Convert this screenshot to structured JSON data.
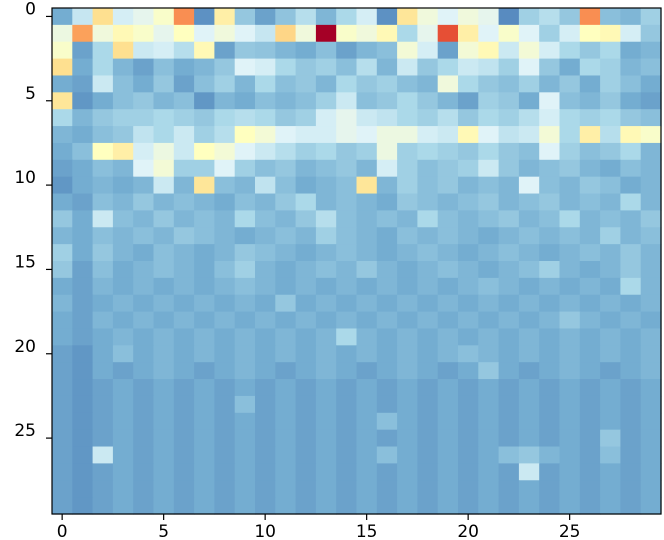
{
  "chart_data": {
    "type": "heatmap",
    "title": "",
    "xlabel": "",
    "ylabel": "",
    "n_rows": 30,
    "n_cols": 30,
    "xlim": [
      -0.5,
      29.5
    ],
    "ylim": [
      29.5,
      -0.5
    ],
    "y_axis_inverted": true,
    "colormap": "RdYlBu_r",
    "value_range": [
      0,
      1
    ],
    "colorbar": "none",
    "grid": false,
    "x_ticks": [
      0,
      5,
      10,
      15,
      20,
      25
    ],
    "x_tick_labels": [
      "0",
      "5",
      "10",
      "15",
      "20",
      "25"
    ],
    "y_ticks": [
      0,
      5,
      10,
      15,
      20,
      25
    ],
    "y_tick_labels": [
      "0",
      "5",
      "10",
      "15",
      "20",
      "25"
    ],
    "values": [
      [
        0.2,
        0.35,
        0.6,
        0.38,
        0.42,
        0.48,
        0.75,
        0.15,
        0.55,
        0.26,
        0.18,
        0.25,
        0.32,
        0.22,
        0.3,
        0.38,
        0.15,
        0.58,
        0.45,
        0.4,
        0.45,
        0.42,
        0.14,
        0.28,
        0.32,
        0.26,
        0.75,
        0.24,
        0.22,
        0.28
      ],
      [
        0.44,
        0.72,
        0.45,
        0.52,
        0.48,
        0.42,
        0.5,
        0.4,
        0.45,
        0.4,
        0.35,
        0.62,
        0.45,
        1.0,
        0.48,
        0.45,
        0.52,
        0.3,
        0.42,
        0.85,
        0.55,
        0.4,
        0.48,
        0.4,
        0.28,
        0.38,
        0.5,
        0.52,
        0.38,
        0.26
      ],
      [
        0.48,
        0.18,
        0.3,
        0.6,
        0.36,
        0.38,
        0.32,
        0.52,
        0.18,
        0.26,
        0.25,
        0.22,
        0.2,
        0.24,
        0.18,
        0.22,
        0.24,
        0.46,
        0.38,
        0.18,
        0.46,
        0.52,
        0.36,
        0.46,
        0.38,
        0.3,
        0.26,
        0.3,
        0.2,
        0.22
      ],
      [
        0.6,
        0.2,
        0.3,
        0.22,
        0.18,
        0.24,
        0.2,
        0.22,
        0.26,
        0.4,
        0.38,
        0.3,
        0.26,
        0.28,
        0.24,
        0.32,
        0.22,
        0.36,
        0.26,
        0.3,
        0.36,
        0.34,
        0.28,
        0.4,
        0.26,
        0.2,
        0.3,
        0.28,
        0.22,
        0.24
      ],
      [
        0.2,
        0.18,
        0.36,
        0.24,
        0.2,
        0.26,
        0.18,
        0.24,
        0.28,
        0.22,
        0.3,
        0.24,
        0.26,
        0.22,
        0.3,
        0.26,
        0.28,
        0.24,
        0.22,
        0.45,
        0.3,
        0.26,
        0.24,
        0.28,
        0.22,
        0.26,
        0.2,
        0.28,
        0.24,
        0.2
      ],
      [
        0.58,
        0.16,
        0.2,
        0.24,
        0.26,
        0.22,
        0.24,
        0.16,
        0.22,
        0.2,
        0.24,
        0.22,
        0.24,
        0.28,
        0.36,
        0.24,
        0.26,
        0.3,
        0.26,
        0.22,
        0.18,
        0.28,
        0.26,
        0.2,
        0.4,
        0.24,
        0.22,
        0.26,
        0.2,
        0.18
      ],
      [
        0.3,
        0.22,
        0.26,
        0.28,
        0.28,
        0.3,
        0.28,
        0.26,
        0.3,
        0.32,
        0.3,
        0.26,
        0.28,
        0.38,
        0.42,
        0.36,
        0.34,
        0.3,
        0.28,
        0.32,
        0.26,
        0.3,
        0.28,
        0.32,
        0.38,
        0.3,
        0.28,
        0.3,
        0.26,
        0.24
      ],
      [
        0.22,
        0.2,
        0.24,
        0.26,
        0.34,
        0.3,
        0.36,
        0.28,
        0.32,
        0.5,
        0.46,
        0.4,
        0.38,
        0.38,
        0.42,
        0.4,
        0.44,
        0.44,
        0.38,
        0.36,
        0.52,
        0.4,
        0.34,
        0.36,
        0.46,
        0.3,
        0.55,
        0.32,
        0.52,
        0.48
      ],
      [
        0.2,
        0.24,
        0.5,
        0.55,
        0.38,
        0.44,
        0.36,
        0.5,
        0.46,
        0.4,
        0.36,
        0.32,
        0.28,
        0.3,
        0.26,
        0.28,
        0.44,
        0.28,
        0.3,
        0.28,
        0.26,
        0.3,
        0.26,
        0.24,
        0.4,
        0.28,
        0.24,
        0.26,
        0.3,
        0.22
      ],
      [
        0.18,
        0.2,
        0.24,
        0.22,
        0.4,
        0.46,
        0.28,
        0.28,
        0.4,
        0.28,
        0.24,
        0.26,
        0.22,
        0.24,
        0.26,
        0.22,
        0.38,
        0.28,
        0.24,
        0.26,
        0.28,
        0.36,
        0.26,
        0.22,
        0.24,
        0.26,
        0.22,
        0.2,
        0.24,
        0.22
      ],
      [
        0.16,
        0.2,
        0.22,
        0.2,
        0.22,
        0.36,
        0.22,
        0.58,
        0.24,
        0.22,
        0.34,
        0.24,
        0.2,
        0.22,
        0.24,
        0.58,
        0.22,
        0.28,
        0.24,
        0.26,
        0.22,
        0.24,
        0.22,
        0.4,
        0.24,
        0.22,
        0.26,
        0.24,
        0.2,
        0.22
      ],
      [
        0.2,
        0.18,
        0.24,
        0.22,
        0.26,
        0.22,
        0.24,
        0.22,
        0.2,
        0.24,
        0.22,
        0.26,
        0.3,
        0.22,
        0.24,
        0.22,
        0.2,
        0.26,
        0.24,
        0.22,
        0.24,
        0.26,
        0.22,
        0.24,
        0.26,
        0.22,
        0.24,
        0.22,
        0.3,
        0.22
      ],
      [
        0.26,
        0.2,
        0.36,
        0.24,
        0.22,
        0.26,
        0.22,
        0.24,
        0.22,
        0.3,
        0.24,
        0.22,
        0.26,
        0.32,
        0.24,
        0.22,
        0.24,
        0.22,
        0.3,
        0.24,
        0.22,
        0.24,
        0.26,
        0.22,
        0.24,
        0.3,
        0.22,
        0.24,
        0.22,
        0.26
      ],
      [
        0.22,
        0.2,
        0.24,
        0.22,
        0.24,
        0.22,
        0.26,
        0.24,
        0.22,
        0.2,
        0.22,
        0.24,
        0.22,
        0.28,
        0.24,
        0.22,
        0.2,
        0.24,
        0.22,
        0.24,
        0.22,
        0.2,
        0.22,
        0.24,
        0.22,
        0.24,
        0.22,
        0.28,
        0.22,
        0.24
      ],
      [
        0.28,
        0.2,
        0.26,
        0.22,
        0.2,
        0.24,
        0.22,
        0.2,
        0.22,
        0.26,
        0.24,
        0.22,
        0.2,
        0.22,
        0.24,
        0.22,
        0.2,
        0.22,
        0.24,
        0.22,
        0.2,
        0.22,
        0.24,
        0.22,
        0.2,
        0.22,
        0.24,
        0.22,
        0.26,
        0.22
      ],
      [
        0.26,
        0.18,
        0.24,
        0.2,
        0.22,
        0.24,
        0.22,
        0.2,
        0.24,
        0.28,
        0.22,
        0.2,
        0.22,
        0.24,
        0.22,
        0.26,
        0.22,
        0.2,
        0.22,
        0.24,
        0.22,
        0.2,
        0.22,
        0.24,
        0.28,
        0.22,
        0.2,
        0.22,
        0.26,
        0.22
      ],
      [
        0.2,
        0.18,
        0.22,
        0.2,
        0.22,
        0.2,
        0.22,
        0.2,
        0.22,
        0.24,
        0.22,
        0.2,
        0.22,
        0.2,
        0.22,
        0.2,
        0.22,
        0.2,
        0.22,
        0.2,
        0.22,
        0.24,
        0.22,
        0.2,
        0.22,
        0.2,
        0.22,
        0.2,
        0.3,
        0.22
      ],
      [
        0.22,
        0.18,
        0.2,
        0.22,
        0.2,
        0.22,
        0.2,
        0.22,
        0.2,
        0.22,
        0.2,
        0.26,
        0.2,
        0.22,
        0.2,
        0.22,
        0.2,
        0.22,
        0.2,
        0.22,
        0.2,
        0.22,
        0.2,
        0.22,
        0.2,
        0.22,
        0.2,
        0.22,
        0.2,
        0.22
      ],
      [
        0.2,
        0.18,
        0.22,
        0.2,
        0.22,
        0.2,
        0.22,
        0.2,
        0.22,
        0.2,
        0.22,
        0.2,
        0.22,
        0.2,
        0.22,
        0.2,
        0.22,
        0.2,
        0.22,
        0.2,
        0.22,
        0.2,
        0.22,
        0.2,
        0.22,
        0.26,
        0.22,
        0.2,
        0.22,
        0.2
      ],
      [
        0.2,
        0.18,
        0.2,
        0.22,
        0.2,
        0.22,
        0.2,
        0.22,
        0.2,
        0.22,
        0.2,
        0.22,
        0.2,
        0.22,
        0.3,
        0.22,
        0.2,
        0.22,
        0.2,
        0.22,
        0.2,
        0.22,
        0.2,
        0.22,
        0.2,
        0.22,
        0.2,
        0.22,
        0.2,
        0.22
      ],
      [
        0.18,
        0.16,
        0.2,
        0.24,
        0.2,
        0.22,
        0.2,
        0.22,
        0.2,
        0.22,
        0.2,
        0.22,
        0.2,
        0.22,
        0.2,
        0.22,
        0.2,
        0.22,
        0.2,
        0.22,
        0.24,
        0.22,
        0.2,
        0.22,
        0.2,
        0.22,
        0.2,
        0.22,
        0.2,
        0.22
      ],
      [
        0.18,
        0.16,
        0.2,
        0.18,
        0.2,
        0.22,
        0.2,
        0.18,
        0.2,
        0.22,
        0.2,
        0.18,
        0.2,
        0.22,
        0.2,
        0.18,
        0.2,
        0.22,
        0.2,
        0.18,
        0.2,
        0.26,
        0.2,
        0.18,
        0.2,
        0.22,
        0.2,
        0.18,
        0.2,
        0.22
      ],
      [
        0.18,
        0.16,
        0.18,
        0.2,
        0.18,
        0.2,
        0.18,
        0.2,
        0.18,
        0.2,
        0.18,
        0.2,
        0.18,
        0.2,
        0.18,
        0.2,
        0.18,
        0.2,
        0.18,
        0.2,
        0.18,
        0.2,
        0.18,
        0.2,
        0.18,
        0.2,
        0.18,
        0.2,
        0.18,
        0.2
      ],
      [
        0.18,
        0.16,
        0.18,
        0.2,
        0.18,
        0.2,
        0.18,
        0.2,
        0.18,
        0.24,
        0.18,
        0.2,
        0.18,
        0.2,
        0.18,
        0.2,
        0.18,
        0.2,
        0.18,
        0.2,
        0.18,
        0.2,
        0.18,
        0.2,
        0.18,
        0.2,
        0.18,
        0.2,
        0.18,
        0.2
      ],
      [
        0.18,
        0.16,
        0.18,
        0.2,
        0.18,
        0.2,
        0.18,
        0.2,
        0.18,
        0.2,
        0.18,
        0.2,
        0.18,
        0.2,
        0.18,
        0.2,
        0.24,
        0.2,
        0.18,
        0.2,
        0.18,
        0.2,
        0.18,
        0.2,
        0.18,
        0.2,
        0.18,
        0.2,
        0.18,
        0.2
      ],
      [
        0.18,
        0.16,
        0.18,
        0.2,
        0.18,
        0.2,
        0.18,
        0.2,
        0.18,
        0.2,
        0.18,
        0.2,
        0.18,
        0.2,
        0.18,
        0.2,
        0.18,
        0.2,
        0.18,
        0.2,
        0.18,
        0.2,
        0.18,
        0.2,
        0.18,
        0.2,
        0.18,
        0.26,
        0.18,
        0.2
      ],
      [
        0.18,
        0.16,
        0.36,
        0.2,
        0.18,
        0.2,
        0.18,
        0.2,
        0.18,
        0.2,
        0.18,
        0.2,
        0.18,
        0.2,
        0.18,
        0.2,
        0.24,
        0.2,
        0.18,
        0.2,
        0.18,
        0.2,
        0.24,
        0.26,
        0.22,
        0.2,
        0.18,
        0.24,
        0.18,
        0.2
      ],
      [
        0.18,
        0.16,
        0.18,
        0.2,
        0.18,
        0.2,
        0.18,
        0.2,
        0.18,
        0.2,
        0.18,
        0.2,
        0.18,
        0.2,
        0.18,
        0.2,
        0.18,
        0.2,
        0.18,
        0.2,
        0.18,
        0.2,
        0.18,
        0.36,
        0.18,
        0.2,
        0.18,
        0.2,
        0.18,
        0.2
      ],
      [
        0.18,
        0.16,
        0.18,
        0.2,
        0.18,
        0.2,
        0.18,
        0.2,
        0.18,
        0.2,
        0.18,
        0.2,
        0.18,
        0.2,
        0.18,
        0.2,
        0.18,
        0.2,
        0.18,
        0.2,
        0.18,
        0.2,
        0.18,
        0.2,
        0.18,
        0.2,
        0.18,
        0.2,
        0.18,
        0.2
      ],
      [
        0.18,
        0.16,
        0.18,
        0.2,
        0.18,
        0.2,
        0.18,
        0.2,
        0.18,
        0.2,
        0.18,
        0.2,
        0.18,
        0.2,
        0.18,
        0.2,
        0.18,
        0.2,
        0.18,
        0.2,
        0.18,
        0.2,
        0.18,
        0.2,
        0.18,
        0.2,
        0.18,
        0.2,
        0.18,
        0.2
      ]
    ]
  }
}
